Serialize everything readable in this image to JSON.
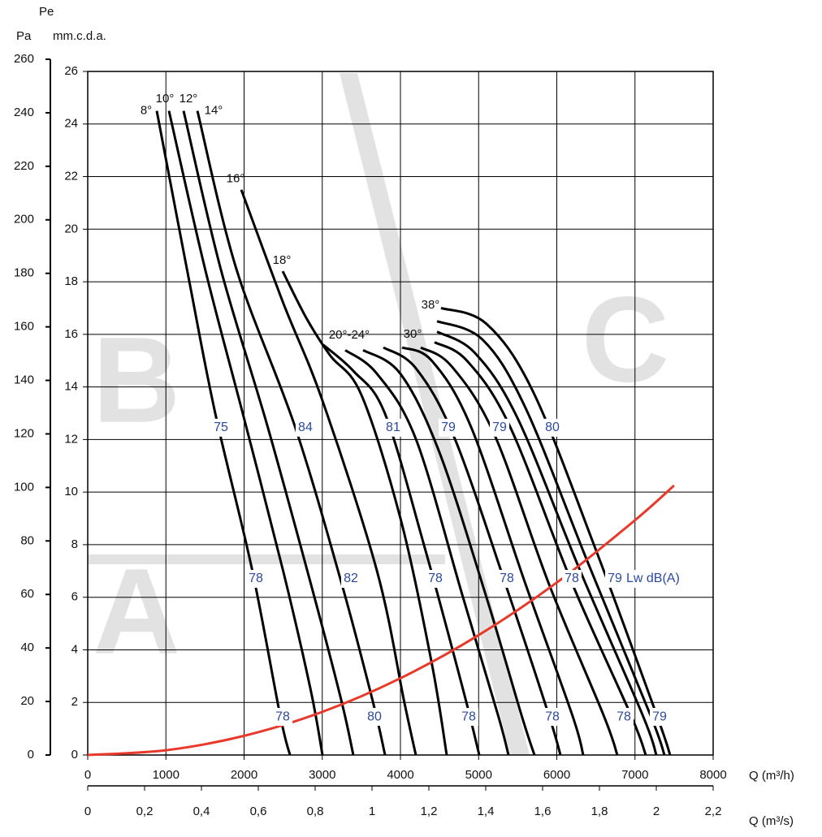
{
  "chart_data": {
    "type": "line",
    "y_label_top": "Pe",
    "y2_label": "Pa",
    "y_label": "mm.c.d.a.",
    "x_label": "Q (m³/h)",
    "x2_label": "Q (m³/s)",
    "grid": true,
    "xlim": [
      0,
      8000
    ],
    "xticks": [
      0,
      1000,
      2000,
      3000,
      4000,
      5000,
      6000,
      7000,
      8000
    ],
    "ylim": [
      0,
      26
    ],
    "yticks": [
      0,
      2,
      4,
      6,
      8,
      10,
      12,
      14,
      16,
      18,
      20,
      22,
      24,
      26
    ],
    "y2lim": [
      0,
      260
    ],
    "y2ticks": [
      0,
      20,
      40,
      60,
      80,
      100,
      120,
      140,
      160,
      180,
      200,
      220,
      240,
      260
    ],
    "x2lim": [
      0,
      2.2
    ],
    "x2ticks": [
      0,
      {
        "value": 0.2,
        "label": "0,2"
      },
      {
        "value": 0.4,
        "label": "0,4"
      },
      {
        "value": 0.6,
        "label": "0,6"
      },
      {
        "value": 0.8,
        "label": "0,8"
      },
      1,
      {
        "value": 1.2,
        "label": "1,2"
      },
      {
        "value": 1.4,
        "label": "1,4"
      },
      {
        "value": 1.6,
        "label": "1,6"
      },
      {
        "value": 1.8,
        "label": "1,8"
      },
      2,
      {
        "value": 2.2,
        "label": "2,2"
      }
    ],
    "series": [
      {
        "color": "#000000",
        "x": [
          883,
          1300,
          1631,
          2099,
          2462,
          2587
        ],
        "values": [
          24.5,
          18,
          13,
          7.1,
          1.5,
          0
        ]
      },
      {
        "color": "#000000",
        "x": [
          1039,
          1500,
          2000,
          2500,
          2850,
          3003
        ],
        "values": [
          24.5,
          18.5,
          12.8,
          7,
          2.5,
          0
        ]
      },
      {
        "color": "#000000",
        "x": [
          1226,
          1700,
          2300,
          2900,
          3250,
          3397
        ],
        "values": [
          24.5,
          18.5,
          12.5,
          6,
          2,
          0
        ]
      },
      {
        "color": "#000000",
        "x": [
          1403,
          1900,
          2650,
          3250,
          3650,
          3803
        ],
        "values": [
          24.5,
          18.5,
          12.5,
          6.5,
          2,
          0
        ]
      },
      {
        "color": "#000000",
        "x": [
          1964,
          2500,
          3000,
          3700,
          4050,
          4197
        ],
        "values": [
          21.5,
          17.2,
          13.5,
          7,
          2,
          0
        ]
      },
      {
        "color": "#000000",
        "x": [
          2494,
          2800,
          3100,
          3500,
          4000,
          4400,
          4592
        ],
        "values": [
          18.4,
          16.6,
          15.2,
          13.7,
          9,
          3.5,
          0
        ]
      },
      {
        "color": "#000000",
        "x": [
          3013,
          3400,
          3800,
          4300,
          4800,
          5008
        ],
        "values": [
          15.6,
          14.6,
          13,
          8,
          2.5,
          0
        ]
      },
      {
        "color": "#000000",
        "x": [
          3294,
          3700,
          4200,
          4800,
          5250,
          5382
        ],
        "values": [
          15.4,
          14.5,
          12,
          6,
          1.5,
          0
        ]
      },
      {
        "color": "#000000",
        "x": [
          3522,
          4000,
          4500,
          5100,
          5550,
          5714
        ],
        "values": [
          15.4,
          14.5,
          11.5,
          6,
          1.5,
          0
        ]
      },
      {
        "color": "#000000",
        "x": [
          3782,
          4200,
          4700,
          5400,
          5900,
          6047
        ],
        "values": [
          15.5,
          14.7,
          12,
          6,
          1.5,
          0
        ]
      },
      {
        "color": "#000000",
        "x": [
          4021,
          4400,
          4900,
          5600,
          6200,
          6338
        ],
        "values": [
          15.5,
          15,
          12.5,
          6.5,
          1.5,
          0
        ]
      },
      {
        "color": "#000000",
        "x": [
          4260,
          4650,
          5200,
          5900,
          6600,
          6774
        ],
        "values": [
          15.5,
          14.8,
          12.2,
          6.5,
          1.5,
          0
        ]
      },
      {
        "color": "#000000",
        "x": [
          4436,
          4850,
          5400,
          6200,
          6950,
          7138
        ],
        "values": [
          15.7,
          15,
          12.5,
          6.5,
          1.5,
          0
        ]
      },
      {
        "color": "#000000",
        "x": [
          4468,
          4950,
          5500,
          6300,
          7100,
          7273
        ],
        "values": [
          16.1,
          15.3,
          12.8,
          7,
          1.5,
          0
        ]
      },
      {
        "color": "#000000",
        "x": [
          4468,
          5050,
          5600,
          6400,
          7200,
          7377
        ],
        "values": [
          16.5,
          15.8,
          13.2,
          7.3,
          1.5,
          0
        ]
      },
      {
        "color": "#000000",
        "x": [
          4519,
          5100,
          5700,
          6500,
          7280,
          7449
        ],
        "values": [
          17,
          16.4,
          13.8,
          7.8,
          1.5,
          0
        ]
      },
      {
        "color": "#e8392a",
        "x": [
          0,
          1000,
          2000,
          3000,
          4000,
          5000,
          6000,
          7000,
          7500
        ],
        "values": [
          0,
          0.18,
          0.73,
          1.64,
          2.92,
          4.56,
          6.56,
          8.93,
          10.25
        ]
      }
    ],
    "angle_labels": [
      {
        "text": "8°",
        "x": 748,
        "y": 24.5
      },
      {
        "text": "10°",
        "x": 987,
        "y": 24.95
      },
      {
        "text": "12°",
        "x": 1288,
        "y": 24.95
      },
      {
        "text": "14°",
        "x": 1610,
        "y": 24.5
      },
      {
        "text": "16°",
        "x": 1891,
        "y": 21.9
      },
      {
        "text": "18°",
        "x": 2483,
        "y": 18.8
      },
      {
        "text": "20°-24°",
        "x": 3345,
        "y": 15.97
      },
      {
        "text": "30°",
        "x": 4156,
        "y": 16
      },
      {
        "text": "38°",
        "x": 4384,
        "y": 17.1
      }
    ],
    "sound_labels": [
      {
        "value": 75,
        "x": 1704,
        "y": 12.45
      },
      {
        "value": 84,
        "x": 2784,
        "y": 12.45
      },
      {
        "value": 81,
        "x": 3906,
        "y": 12.45
      },
      {
        "value": 79,
        "x": 4613,
        "y": 12.45
      },
      {
        "value": 79,
        "x": 5268,
        "y": 12.45
      },
      {
        "value": 80,
        "x": 5943,
        "y": 12.45
      },
      {
        "value": 78,
        "x": 2151,
        "y": 6.7
      },
      {
        "value": 82,
        "x": 3366,
        "y": 6.7
      },
      {
        "value": 78,
        "x": 4447,
        "y": 6.7
      },
      {
        "value": 78,
        "x": 5361,
        "y": 6.7
      },
      {
        "value": 78,
        "x": 6192,
        "y": 6.7
      },
      {
        "value": 79,
        "x": 6743,
        "y": 6.7
      },
      {
        "value": 78,
        "x": 2494,
        "y": 1.45
      },
      {
        "value": 80,
        "x": 3668,
        "y": 1.45
      },
      {
        "value": 78,
        "x": 4873,
        "y": 1.45
      },
      {
        "value": 78,
        "x": 5943,
        "y": 1.45
      },
      {
        "value": 78,
        "x": 6857,
        "y": 1.45
      },
      {
        "value": 79,
        "x": 7314,
        "y": 1.45
      }
    ],
    "sound_unit": "Lw dB(A)"
  }
}
